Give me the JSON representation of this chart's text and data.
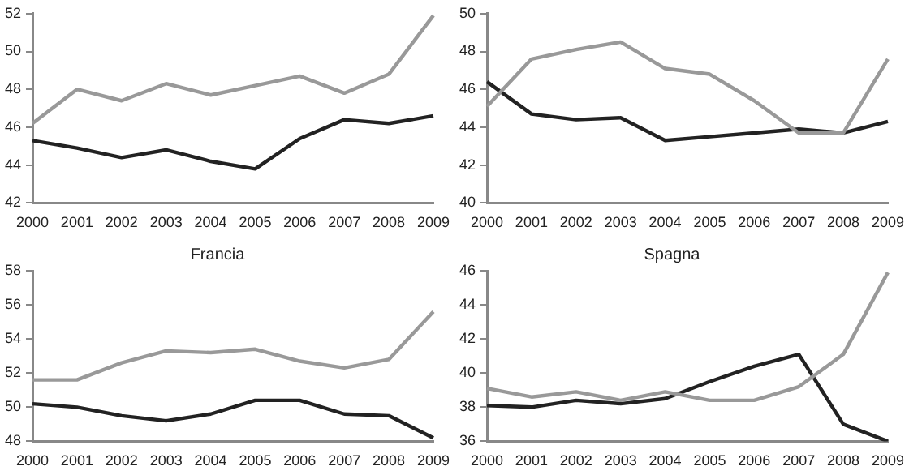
{
  "chart_data": [
    {
      "type": "line",
      "categories": [
        "2000",
        "2001",
        "2002",
        "2003",
        "2004",
        "2005",
        "2006",
        "2007",
        "2008",
        "2009"
      ],
      "ylim": [
        42,
        52
      ],
      "yticks": [
        42,
        44,
        46,
        48,
        50,
        52
      ],
      "grid": false,
      "legend": false,
      "marker": "none",
      "series": [
        {
          "color": "#999999",
          "values": [
            46.2,
            48.0,
            47.4,
            48.3,
            47.7,
            48.2,
            48.7,
            47.8,
            48.8,
            51.9
          ]
        },
        {
          "color": "#222222",
          "values": [
            45.3,
            44.9,
            44.4,
            44.8,
            44.2,
            43.8,
            45.4,
            46.4,
            46.2,
            46.6
          ]
        }
      ]
    },
    {
      "type": "line",
      "categories": [
        "2000",
        "2001",
        "2002",
        "2003",
        "2004",
        "2005",
        "2006",
        "2007",
        "2008",
        "2009"
      ],
      "ylim": [
        40,
        50
      ],
      "yticks": [
        40,
        42,
        44,
        46,
        48,
        50
      ],
      "grid": false,
      "legend": false,
      "marker": "none",
      "series": [
        {
          "color": "#999999",
          "values": [
            45.1,
            47.6,
            48.1,
            48.5,
            47.1,
            46.8,
            45.4,
            43.7,
            43.7,
            47.6
          ]
        },
        {
          "color": "#222222",
          "values": [
            46.4,
            44.7,
            44.4,
            44.5,
            43.3,
            43.5,
            43.7,
            43.9,
            43.7,
            44.3
          ]
        }
      ]
    },
    {
      "type": "line",
      "title": "Francia",
      "categories": [
        "2000",
        "2001",
        "2002",
        "2003",
        "2004",
        "2005",
        "2006",
        "2007",
        "2008",
        "2009"
      ],
      "ylim": [
        48,
        58
      ],
      "yticks": [
        48,
        50,
        52,
        54,
        56,
        58
      ],
      "grid": false,
      "legend": false,
      "marker": "none",
      "series": [
        {
          "color": "#999999",
          "values": [
            51.6,
            51.6,
            52.6,
            53.3,
            53.2,
            53.4,
            52.7,
            52.3,
            52.8,
            55.6
          ]
        },
        {
          "color": "#222222",
          "values": [
            50.2,
            50.0,
            49.5,
            49.2,
            49.6,
            50.4,
            50.4,
            49.6,
            49.5,
            48.2
          ]
        }
      ]
    },
    {
      "type": "line",
      "title": "Spagna",
      "categories": [
        "2000",
        "2001",
        "2002",
        "2003",
        "2004",
        "2005",
        "2006",
        "2007",
        "2008",
        "2009"
      ],
      "ylim": [
        36,
        46
      ],
      "yticks": [
        36,
        38,
        40,
        42,
        44,
        46
      ],
      "grid": false,
      "legend": false,
      "marker": "none",
      "series": [
        {
          "color": "#999999",
          "values": [
            39.1,
            38.6,
            38.9,
            38.4,
            38.9,
            38.4,
            38.4,
            39.2,
            41.1,
            45.9
          ]
        },
        {
          "color": "#222222",
          "values": [
            38.1,
            38.0,
            38.4,
            38.2,
            38.5,
            39.5,
            40.4,
            41.1,
            37.0,
            36.0
          ]
        }
      ]
    }
  ]
}
